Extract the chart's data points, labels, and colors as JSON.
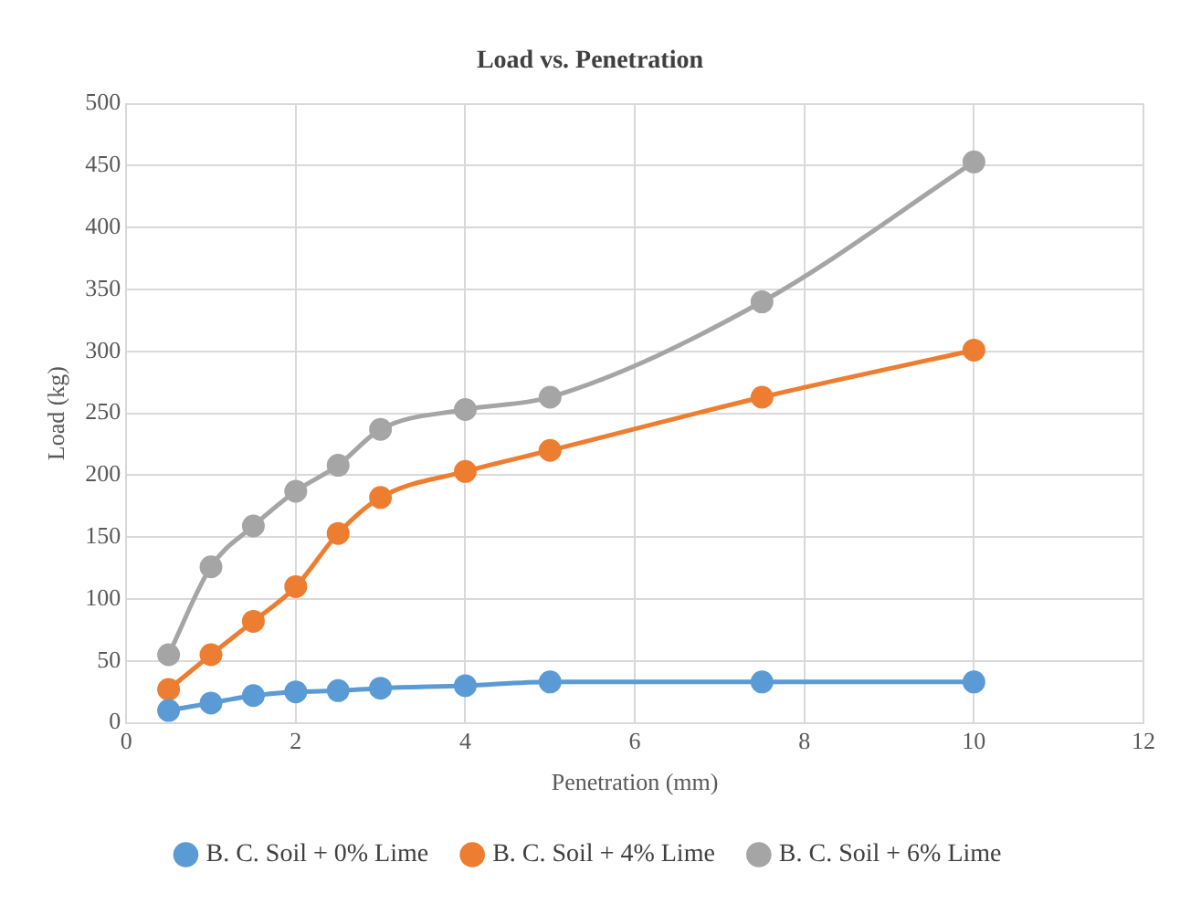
{
  "chart_data": {
    "type": "line",
    "title": "Load vs. Penetration",
    "xlabel": "Penetration (mm)",
    "ylabel": "Load (kg)",
    "x": [
      0.5,
      1,
      1.5,
      2,
      2.5,
      3,
      4,
      5,
      7.5,
      10
    ],
    "series": [
      {
        "name": "B. C. Soil + 0% Lime",
        "color": "#5b9bd5",
        "values": [
          10,
          16,
          22,
          25,
          26,
          28,
          30,
          33,
          33,
          33
        ]
      },
      {
        "name": "B. C. Soil + 4% Lime",
        "color": "#ed7d31",
        "values": [
          27,
          55,
          82,
          110,
          153,
          182,
          203,
          220,
          263,
          301
        ]
      },
      {
        "name": "B. C. Soil + 6% Lime",
        "color": "#a5a5a5",
        "values": [
          55,
          126,
          159,
          187,
          208,
          237,
          253,
          263,
          340,
          453
        ]
      }
    ],
    "xlim": [
      0,
      12
    ],
    "xticks": [
      0,
      2,
      4,
      6,
      8,
      10,
      12
    ],
    "ylim": [
      0,
      500
    ],
    "yticks": [
      0,
      50,
      100,
      150,
      200,
      250,
      300,
      350,
      400,
      450,
      500
    ],
    "grid": true,
    "legend": "bottom",
    "marker": "circle",
    "line_style": "solid"
  }
}
